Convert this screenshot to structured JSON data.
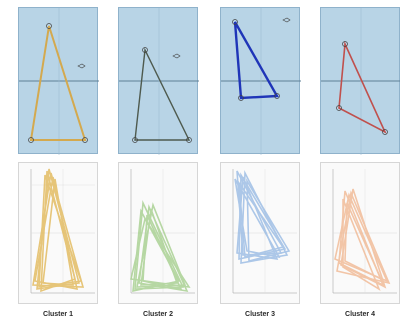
{
  "clusters": [
    {
      "label": "Cluster 1",
      "color": "#d4a94e",
      "bg_lines": "#e9cf8c"
    },
    {
      "label": "Cluster 2",
      "color": "#4e5a4e",
      "bg_lines": "#9cc78a"
    },
    {
      "label": "Cluster 3",
      "color": "#1f35b8",
      "bg_lines": "#8fb4e0"
    },
    {
      "label": "Cluster 4",
      "color": "#c0504d",
      "bg_lines": "#f0b892"
    }
  ]
}
